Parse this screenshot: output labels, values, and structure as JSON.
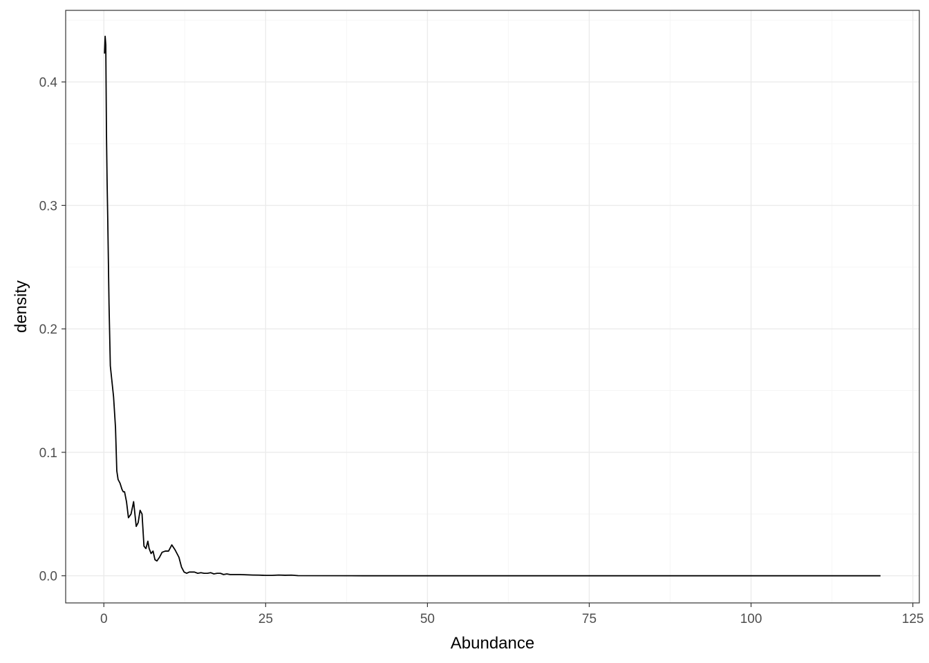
{
  "chart_data": {
    "type": "line",
    "title": "",
    "xlabel": "Abundance",
    "ylabel": "density",
    "xlim": [
      -5.9,
      126.0
    ],
    "ylim": [
      -0.022,
      0.458
    ],
    "xticks": [
      0,
      25,
      50,
      75,
      100,
      125
    ],
    "xtick_labels": [
      "0",
      "25",
      "50",
      "75",
      "100",
      "125"
    ],
    "yticks": [
      0.0,
      0.1,
      0.2,
      0.3,
      0.4
    ],
    "ytick_labels": [
      "0.0",
      "0.1",
      "0.2",
      "0.3",
      "0.4"
    ],
    "grid": true,
    "legend": "none",
    "colors": {
      "line": "#000000",
      "grid_major": "#ebebeb",
      "grid_minor": "#f5f5f5",
      "border": "#333333",
      "tick_text": "#4d4d4d"
    },
    "series": [
      {
        "x": [
          0.1,
          0.2,
          0.3,
          0.4,
          0.5,
          0.6,
          0.8,
          1.0,
          1.2,
          1.5,
          1.8,
          2.0,
          2.2,
          2.5,
          2.8,
          3.0,
          3.2,
          3.5,
          3.8,
          4.2,
          4.6,
          5.0,
          5.3,
          5.6,
          5.9,
          6.2,
          6.5,
          6.8,
          7.0,
          7.3,
          7.6,
          7.9,
          8.2,
          8.6,
          9.0,
          9.5,
          10.0,
          10.5,
          11.0,
          11.3,
          11.6,
          12.0,
          12.4,
          12.8,
          13.2,
          13.6,
          14.0,
          14.5,
          15.0,
          15.5,
          16.0,
          16.5,
          17.0,
          17.5,
          18.0,
          18.5,
          19.0,
          19.5,
          20.0,
          21.0,
          22.0,
          23.0,
          24.0,
          25.0,
          26.0,
          27.0,
          28.0,
          29.0,
          30.0,
          40.0,
          60.0,
          80.0,
          100.0,
          120.0
        ],
        "y": [
          0.423,
          0.437,
          0.43,
          0.36,
          0.32,
          0.29,
          0.22,
          0.17,
          0.16,
          0.145,
          0.12,
          0.085,
          0.078,
          0.075,
          0.07,
          0.068,
          0.068,
          0.06,
          0.047,
          0.05,
          0.06,
          0.04,
          0.043,
          0.053,
          0.05,
          0.024,
          0.022,
          0.028,
          0.022,
          0.018,
          0.02,
          0.013,
          0.012,
          0.015,
          0.019,
          0.02,
          0.02,
          0.025,
          0.021,
          0.018,
          0.015,
          0.007,
          0.003,
          0.002,
          0.003,
          0.003,
          0.003,
          0.002,
          0.0025,
          0.002,
          0.002,
          0.0025,
          0.0015,
          0.002,
          0.002,
          0.001,
          0.0015,
          0.001,
          0.001,
          0.001,
          0.0008,
          0.0006,
          0.0005,
          0.0003,
          0.0003,
          0.0006,
          0.0004,
          0.0005,
          0.0001,
          0.0,
          0.0,
          0.0,
          0.0,
          0.0
        ]
      }
    ]
  }
}
